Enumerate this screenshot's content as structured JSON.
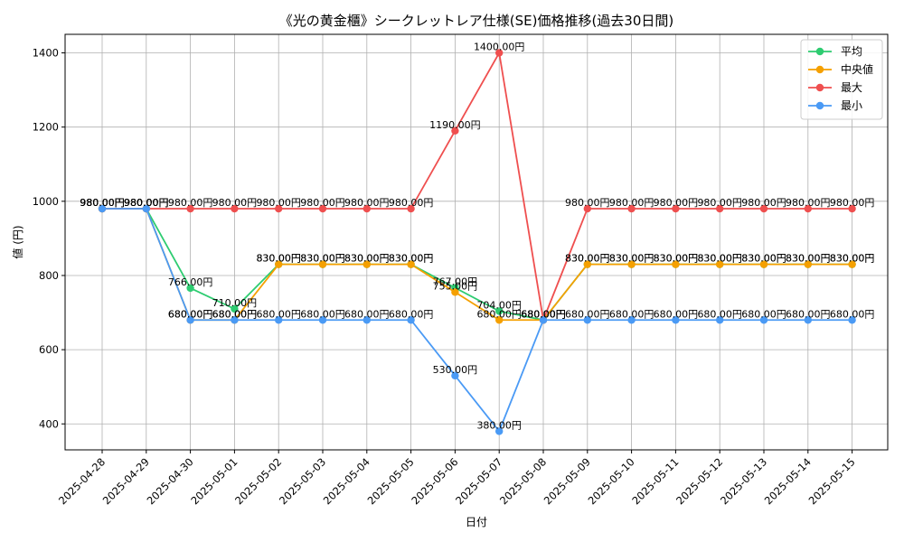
{
  "chart_data": {
    "type": "line",
    "title": "《光の黄金櫃》シークレットレア仕様(SE)価格推移(過去30日間)",
    "xlabel": "日付",
    "ylabel": "値 (円)",
    "ylim": [
      330,
      1450
    ],
    "yticks": [
      400,
      600,
      800,
      1000,
      1200,
      1400
    ],
    "grid": true,
    "legend_position": "top-right",
    "value_suffix": "円",
    "categories": [
      "2025-04-28",
      "2025-04-29",
      "2025-04-30",
      "2025-05-01",
      "2025-05-02",
      "2025-05-03",
      "2025-05-04",
      "2025-05-05",
      "2025-05-06",
      "2025-05-07",
      "2025-05-08",
      "2025-05-09",
      "2025-05-10",
      "2025-05-11",
      "2025-05-12",
      "2025-05-13",
      "2025-05-14",
      "2025-05-15"
    ],
    "series": [
      {
        "name": "平均",
        "color": "#2ecc71",
        "values": [
          980,
          980,
          766,
          710,
          830,
          830,
          830,
          830,
          767,
          704,
          680,
          830,
          830,
          830,
          830,
          830,
          830,
          830
        ]
      },
      {
        "name": "中央値",
        "color": "#f5a000",
        "values": [
          980,
          980,
          680,
          680,
          830,
          830,
          830,
          830,
          755,
          680,
          680,
          830,
          830,
          830,
          830,
          830,
          830,
          830
        ]
      },
      {
        "name": "最大",
        "color": "#ef4f4f",
        "values": [
          980,
          980,
          980,
          980,
          980,
          980,
          980,
          980,
          1190,
          1400,
          680,
          980,
          980,
          980,
          980,
          980,
          980,
          980
        ]
      },
      {
        "name": "最小",
        "color": "#4a9af5",
        "values": [
          980,
          980,
          680,
          680,
          680,
          680,
          680,
          680,
          530,
          380,
          680,
          680,
          680,
          680,
          680,
          680,
          680,
          680
        ]
      }
    ]
  }
}
